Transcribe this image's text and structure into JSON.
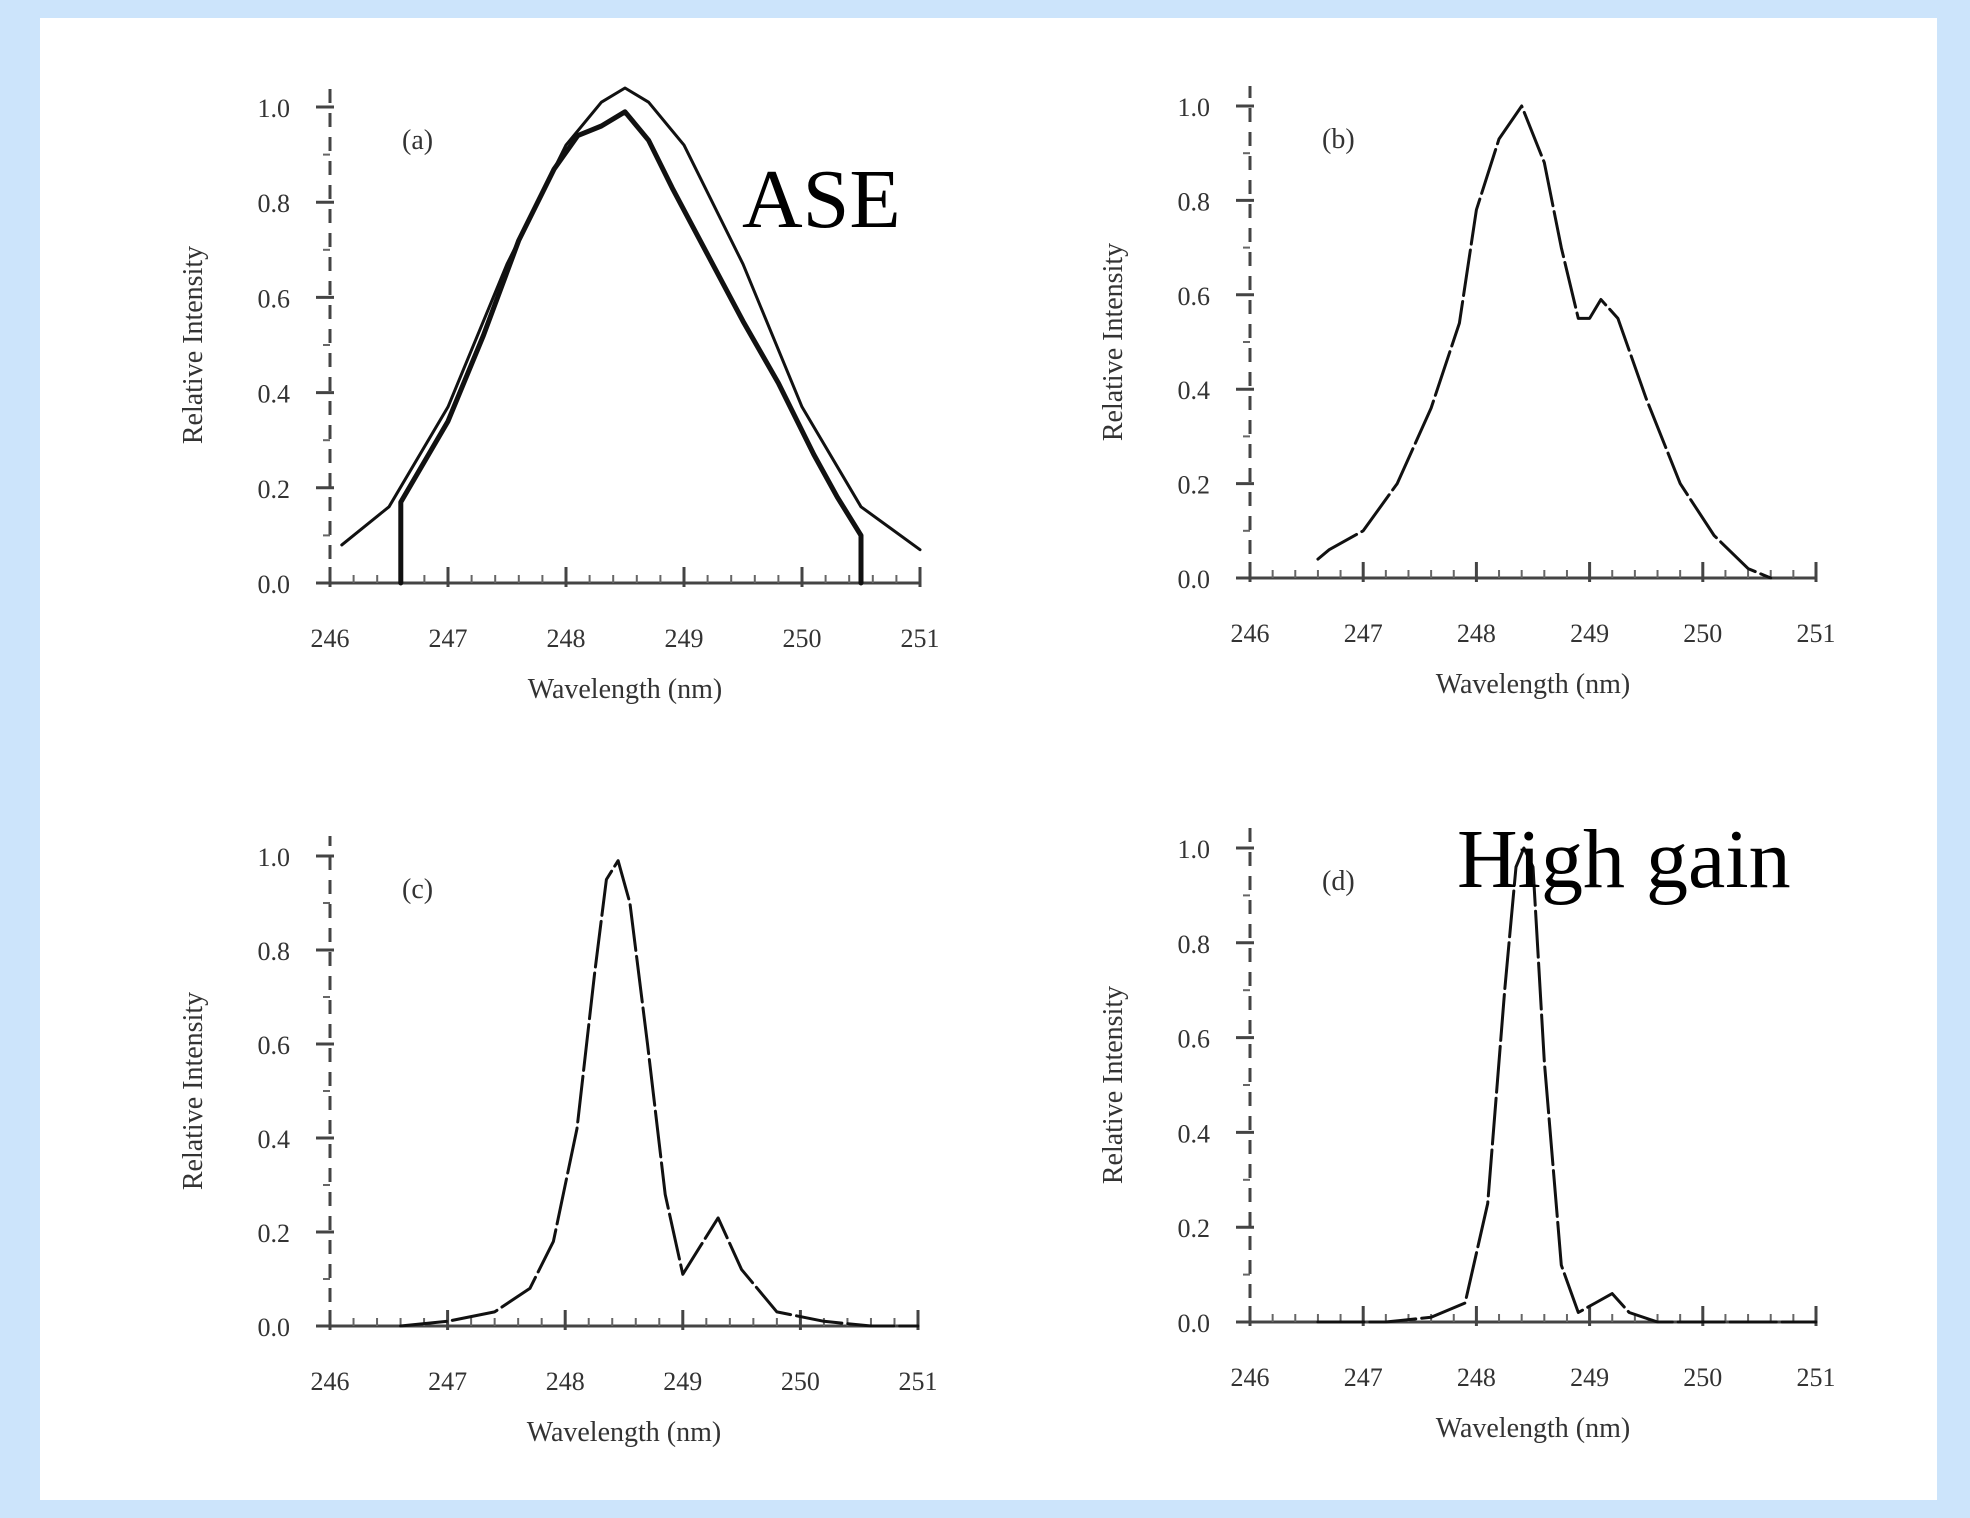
{
  "background_color": "#cce4fb",
  "panel_color": "#ffffff",
  "annotations": {
    "ase": "ASE",
    "high_gain": "High gain"
  },
  "chart_data": [
    {
      "type": "line",
      "panel_label": "(a)",
      "xlabel": "Wavelength (nm)",
      "ylabel": "Relative Intensity",
      "xlim": [
        246,
        251
      ],
      "ylim": [
        0,
        1.0
      ],
      "x_ticks": [
        "246",
        "247",
        "248",
        "249",
        "250",
        "251"
      ],
      "y_ticks": [
        "0.0",
        "0.2",
        "0.4",
        "0.6",
        "0.8",
        "1.0"
      ],
      "grid": false,
      "series": [
        {
          "style": "solid",
          "x": [
            246.1,
            246.5,
            247.0,
            247.5,
            248.0,
            248.3,
            248.5,
            248.7,
            249.0,
            249.5,
            250.0,
            250.5,
            251.0
          ],
          "y": [
            0.08,
            0.16,
            0.37,
            0.67,
            0.92,
            1.01,
            1.04,
            1.01,
            0.92,
            0.67,
            0.37,
            0.16,
            0.07
          ]
        },
        {
          "style": "noisy",
          "x": [
            246.6,
            246.6,
            247.0,
            247.3,
            247.6,
            247.9,
            248.1,
            248.3,
            248.5,
            248.7,
            248.9,
            249.2,
            249.5,
            249.8,
            250.1,
            250.3,
            250.5,
            250.5
          ],
          "y": [
            0.0,
            0.17,
            0.34,
            0.52,
            0.72,
            0.87,
            0.94,
            0.96,
            0.99,
            0.93,
            0.83,
            0.69,
            0.55,
            0.42,
            0.27,
            0.18,
            0.1,
            0.0
          ]
        }
      ]
    },
    {
      "type": "line",
      "panel_label": "(b)",
      "xlabel": "Wavelength (nm)",
      "ylabel": "Relative Intensity",
      "xlim": [
        246,
        251
      ],
      "ylim": [
        0,
        1.0
      ],
      "x_ticks": [
        "246",
        "247",
        "248",
        "249",
        "250",
        "251"
      ],
      "y_ticks": [
        "0.0",
        "0.2",
        "0.4",
        "0.6",
        "0.8",
        "1.0"
      ],
      "grid": false,
      "series": [
        {
          "style": "dashed",
          "x": [
            246.6,
            246.7,
            247.0,
            247.3,
            247.6,
            247.85,
            248.0,
            248.2,
            248.4,
            248.6,
            248.75,
            248.9,
            249.0,
            249.1,
            249.25,
            249.5,
            249.8,
            250.1,
            250.4,
            250.6
          ],
          "y": [
            0.04,
            0.06,
            0.1,
            0.2,
            0.36,
            0.54,
            0.78,
            0.93,
            1.0,
            0.88,
            0.7,
            0.55,
            0.55,
            0.59,
            0.55,
            0.38,
            0.2,
            0.09,
            0.02,
            0.0
          ]
        }
      ]
    },
    {
      "type": "line",
      "panel_label": "(c)",
      "xlabel": "Wavelength (nm)",
      "ylabel": "Relative Intensity",
      "xlim": [
        246,
        251
      ],
      "ylim": [
        0,
        1.0
      ],
      "x_ticks": [
        "246",
        "247",
        "248",
        "249",
        "250",
        "251"
      ],
      "y_ticks": [
        "0.0",
        "0.2",
        "0.4",
        "0.6",
        "0.8",
        "1.0"
      ],
      "grid": false,
      "series": [
        {
          "style": "dashed",
          "x": [
            246.6,
            247.0,
            247.4,
            247.7,
            247.9,
            248.1,
            248.25,
            248.35,
            248.45,
            248.55,
            248.7,
            248.85,
            249.0,
            249.15,
            249.3,
            249.5,
            249.8,
            250.2,
            250.6,
            251.0
          ],
          "y": [
            0.0,
            0.01,
            0.03,
            0.08,
            0.18,
            0.42,
            0.75,
            0.95,
            0.99,
            0.9,
            0.6,
            0.28,
            0.11,
            0.17,
            0.23,
            0.12,
            0.03,
            0.01,
            0.0,
            0.0
          ]
        }
      ]
    },
    {
      "type": "line",
      "panel_label": "(d)",
      "xlabel": "Wavelength (nm)",
      "ylabel": "Relative Intensity",
      "xlim": [
        246,
        251
      ],
      "ylim": [
        0,
        1.0
      ],
      "x_ticks": [
        "246",
        "247",
        "248",
        "249",
        "250",
        "251"
      ],
      "y_ticks": [
        "0.0",
        "0.2",
        "0.4",
        "0.6",
        "0.8",
        "1.0"
      ],
      "grid": false,
      "series": [
        {
          "style": "dashed",
          "x": [
            246.6,
            247.2,
            247.6,
            247.9,
            248.1,
            248.25,
            248.35,
            248.42,
            248.5,
            248.6,
            248.75,
            248.9,
            249.05,
            249.2,
            249.35,
            249.6,
            250.0,
            250.5,
            251.0
          ],
          "y": [
            0.0,
            0.0,
            0.01,
            0.04,
            0.25,
            0.7,
            0.96,
            1.0,
            0.96,
            0.55,
            0.12,
            0.02,
            0.04,
            0.06,
            0.02,
            0.0,
            0.0,
            0.0,
            0.0
          ]
        }
      ]
    }
  ]
}
